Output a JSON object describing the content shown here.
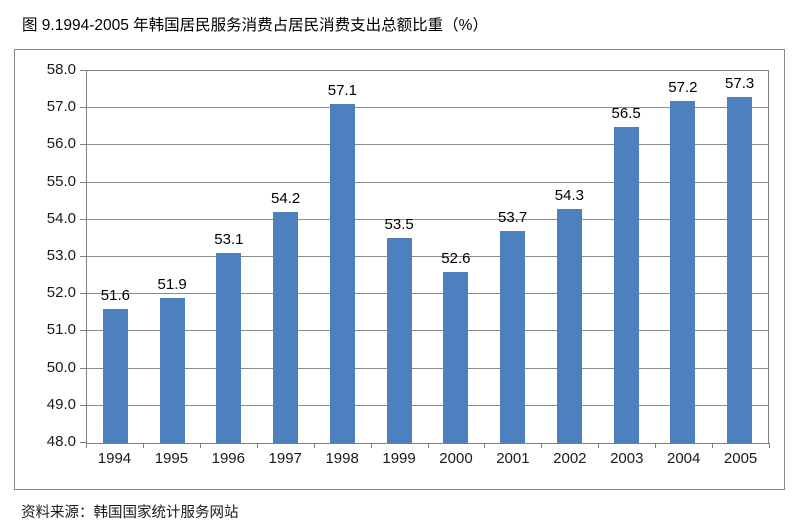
{
  "figure": {
    "title": "图 9.1994-2005 年韩国居民服务消费占居民消费支出总额比重（%）",
    "source": "资料来源：韩国国家统计服务网站"
  },
  "chart_data": {
    "type": "bar",
    "title": "图 9.1994-2005 年韩国居民服务消费占居民消费支出总额比重（%）",
    "categories": [
      "1994",
      "1995",
      "1996",
      "1997",
      "1998",
      "1999",
      "2000",
      "2001",
      "2002",
      "2003",
      "2004",
      "2005"
    ],
    "values": [
      51.6,
      51.9,
      53.1,
      54.2,
      57.1,
      53.5,
      52.6,
      53.7,
      54.3,
      56.5,
      57.2,
      57.3
    ],
    "xlabel": "",
    "ylabel": "",
    "ylim": [
      48.0,
      58.0
    ],
    "ytick_step": 1.0,
    "ytick_labels": [
      "48.0",
      "49.0",
      "50.0",
      "51.0",
      "52.0",
      "53.0",
      "54.0",
      "55.0",
      "56.0",
      "57.0",
      "58.0"
    ],
    "grid": true,
    "legend": false,
    "data_labels": true,
    "bar_color": "#4e80bd",
    "gridline_color": "#8c8c8c",
    "axis_color": "#7f7f7f",
    "source": "资料来源：韩国国家统计服务网站"
  }
}
